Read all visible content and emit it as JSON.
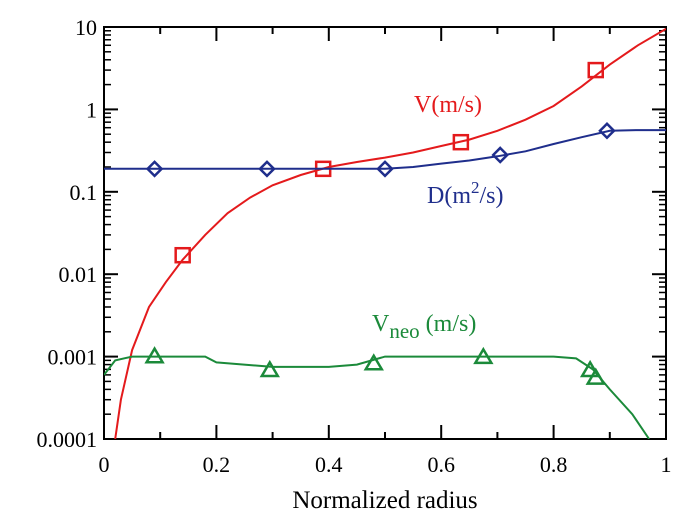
{
  "chart_data": {
    "type": "line",
    "xlabel": "Normalized radius",
    "ylabel": "",
    "xlim": [
      0,
      1
    ],
    "ylim": [
      0.0001,
      10
    ],
    "yscale": "log",
    "grid": false,
    "x_ticks": [
      "0",
      "0.2",
      "0.4",
      "0.6",
      "0.8",
      "1"
    ],
    "y_ticks": [
      "0.0001",
      "0.001",
      "0.01",
      "0.1",
      "1",
      "10"
    ],
    "series": [
      {
        "name": "V(m/s)",
        "label": {
          "main": "V(m/s)"
        },
        "color": "#e41a1c",
        "marker": "square",
        "points": [
          [
            0.02,
            0.0001
          ],
          [
            0.03,
            0.0003
          ],
          [
            0.05,
            0.0012
          ],
          [
            0.08,
            0.004
          ],
          [
            0.11,
            0.008
          ],
          [
            0.14,
            0.015
          ],
          [
            0.18,
            0.03
          ],
          [
            0.22,
            0.055
          ],
          [
            0.26,
            0.085
          ],
          [
            0.3,
            0.12
          ],
          [
            0.35,
            0.16
          ],
          [
            0.4,
            0.2
          ],
          [
            0.45,
            0.23
          ],
          [
            0.5,
            0.26
          ],
          [
            0.55,
            0.3
          ],
          [
            0.6,
            0.36
          ],
          [
            0.65,
            0.43
          ],
          [
            0.7,
            0.55
          ],
          [
            0.75,
            0.75
          ],
          [
            0.8,
            1.1
          ],
          [
            0.85,
            1.9
          ],
          [
            0.9,
            3.5
          ],
          [
            0.95,
            6.0
          ],
          [
            1.0,
            9.5
          ]
        ],
        "markers": [
          [
            0.14,
            0.017
          ],
          [
            0.39,
            0.19
          ],
          [
            0.635,
            0.4
          ],
          [
            0.875,
            3.0
          ]
        ]
      },
      {
        "name": "D(m2/s)",
        "label": {
          "main": "D(m",
          "sup": "2",
          "tail": "/s)"
        },
        "color": "#1f2e8c",
        "marker": "diamond",
        "points": [
          [
            0.0,
            0.19
          ],
          [
            0.1,
            0.19
          ],
          [
            0.2,
            0.19
          ],
          [
            0.3,
            0.19
          ],
          [
            0.4,
            0.19
          ],
          [
            0.5,
            0.19
          ],
          [
            0.55,
            0.2
          ],
          [
            0.6,
            0.22
          ],
          [
            0.65,
            0.24
          ],
          [
            0.7,
            0.27
          ],
          [
            0.75,
            0.31
          ],
          [
            0.8,
            0.38
          ],
          [
            0.85,
            0.46
          ],
          [
            0.9,
            0.55
          ],
          [
            0.95,
            0.56
          ],
          [
            1.0,
            0.56
          ]
        ],
        "markers": [
          [
            0.09,
            0.19
          ],
          [
            0.29,
            0.19
          ],
          [
            0.5,
            0.19
          ],
          [
            0.705,
            0.28
          ],
          [
            0.895,
            0.55
          ]
        ]
      },
      {
        "name": "Vneo (m/s)",
        "label": {
          "main": "V",
          "sub": "neo",
          "tail": " (m/s)"
        },
        "color": "#1b8a3a",
        "marker": "triangle",
        "points": [
          [
            0.0,
            0.0006
          ],
          [
            0.02,
            0.0009
          ],
          [
            0.05,
            0.001
          ],
          [
            0.1,
            0.001
          ],
          [
            0.18,
            0.001
          ],
          [
            0.2,
            0.00085
          ],
          [
            0.3,
            0.00075
          ],
          [
            0.4,
            0.00075
          ],
          [
            0.45,
            0.0008
          ],
          [
            0.5,
            0.001
          ],
          [
            0.6,
            0.001
          ],
          [
            0.7,
            0.001
          ],
          [
            0.8,
            0.001
          ],
          [
            0.84,
            0.00095
          ],
          [
            0.87,
            0.0007
          ],
          [
            0.9,
            0.0004
          ],
          [
            0.94,
            0.0002
          ],
          [
            0.97,
            0.0001
          ]
        ],
        "markers": [
          [
            0.09,
            0.001
          ],
          [
            0.295,
            0.00068
          ],
          [
            0.48,
            0.00082
          ],
          [
            0.675,
            0.00098
          ],
          [
            0.865,
            0.00068
          ],
          [
            0.875,
            0.00055
          ]
        ]
      }
    ]
  }
}
